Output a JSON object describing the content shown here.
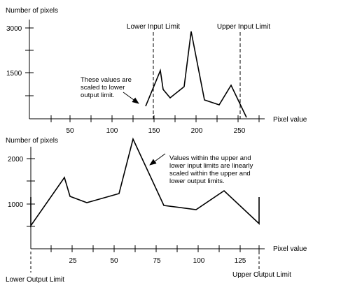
{
  "top_plot": {
    "y_label": "Number of pixels",
    "x_label": "Pixel value",
    "y_ticks": [
      "3000",
      "1500"
    ],
    "x_ticks": [
      "50",
      "100",
      "150",
      "200",
      "250"
    ],
    "lower_input_limit": "Lower Input Limit",
    "upper_input_limit": "Upper Input Limit",
    "note": [
      "These values are",
      "scaled to lower",
      "output limit."
    ]
  },
  "bottom_plot": {
    "y_label": "Number of pixels",
    "x_label": "Pixel value",
    "y_ticks": [
      "2000",
      "1000"
    ],
    "x_ticks": [
      "25",
      "50",
      "75",
      "100",
      "125"
    ],
    "lower_output_limit": "Lower Output Limit",
    "upper_output_limit": "Upper Output Limit",
    "note": [
      "Values within the upper and",
      "lower input limits are linearly",
      "scaled within the upper and",
      "lower output limits."
    ]
  }
}
